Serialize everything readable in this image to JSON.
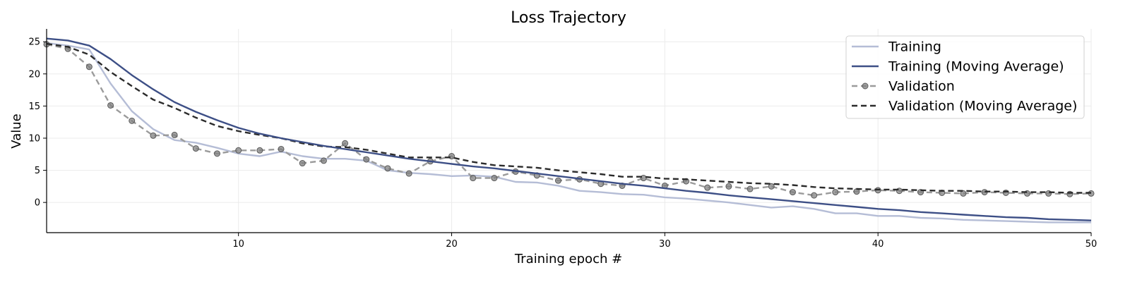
{
  "chart_data": {
    "type": "line",
    "title": "Loss Trajectory",
    "xlabel": "Training epoch #",
    "ylabel": "Value",
    "xlim": [
      1,
      50
    ],
    "ylim": [
      -4.7,
      27
    ],
    "xticks": [
      10,
      20,
      30,
      40,
      50
    ],
    "yticks": [
      0,
      5,
      10,
      15,
      20,
      25
    ],
    "grid": true,
    "legend_position": "top-right",
    "series": [
      {
        "name": "Training",
        "color": "#b5bdd6",
        "style": "solid",
        "x": [
          1,
          2,
          3,
          4,
          5,
          6,
          7,
          8,
          9,
          10,
          11,
          12,
          13,
          14,
          15,
          16,
          17,
          18,
          19,
          20,
          21,
          22,
          23,
          24,
          25,
          26,
          27,
          28,
          29,
          30,
          31,
          32,
          33,
          34,
          35,
          36,
          37,
          38,
          39,
          40,
          41,
          42,
          43,
          44,
          45,
          46,
          47,
          48,
          49,
          50
        ],
        "values": [
          24.8,
          24.4,
          23.8,
          18.5,
          14.2,
          11.4,
          9.7,
          9.3,
          8.5,
          7.6,
          7.2,
          7.9,
          7.2,
          6.8,
          6.8,
          6.5,
          5.0,
          4.6,
          4.4,
          4.1,
          4.2,
          4.0,
          3.2,
          3.1,
          2.6,
          1.8,
          1.6,
          1.3,
          1.2,
          0.8,
          0.6,
          0.3,
          0.0,
          -0.4,
          -0.8,
          -0.6,
          -1.0,
          -1.7,
          -1.7,
          -2.1,
          -2.1,
          -2.4,
          -2.5,
          -2.7,
          -2.8,
          -2.9,
          -3.0,
          -3.1,
          -3.1,
          -3.1
        ]
      },
      {
        "name": "Training (Moving Average)",
        "color": "#3d4f86",
        "style": "solid",
        "x": [
          1,
          2,
          3,
          4,
          5,
          6,
          7,
          8,
          9,
          10,
          11,
          12,
          13,
          14,
          15,
          16,
          17,
          18,
          19,
          20,
          21,
          22,
          23,
          24,
          25,
          26,
          27,
          28,
          29,
          30,
          31,
          32,
          33,
          34,
          35,
          36,
          37,
          38,
          39,
          40,
          41,
          42,
          43,
          44,
          45,
          46,
          47,
          48,
          49,
          50
        ],
        "values": [
          25.5,
          25.2,
          24.4,
          22.3,
          19.8,
          17.6,
          15.6,
          14.1,
          12.8,
          11.6,
          10.7,
          10.0,
          9.4,
          8.8,
          8.3,
          7.8,
          7.3,
          6.8,
          6.4,
          6.0,
          5.6,
          5.3,
          4.9,
          4.5,
          4.1,
          3.7,
          3.3,
          2.9,
          2.6,
          2.2,
          1.8,
          1.5,
          1.1,
          0.8,
          0.5,
          0.2,
          -0.1,
          -0.4,
          -0.7,
          -1.0,
          -1.2,
          -1.5,
          -1.7,
          -1.9,
          -2.1,
          -2.3,
          -2.4,
          -2.6,
          -2.7,
          -2.8
        ]
      },
      {
        "name": "Validation",
        "color": "#9b9b9b",
        "style": "dashed-markers",
        "x": [
          1,
          2,
          3,
          4,
          5,
          6,
          7,
          8,
          9,
          10,
          11,
          12,
          13,
          14,
          15,
          16,
          17,
          18,
          19,
          20,
          21,
          22,
          23,
          24,
          25,
          26,
          27,
          28,
          29,
          30,
          31,
          32,
          33,
          34,
          35,
          36,
          37,
          38,
          39,
          40,
          41,
          42,
          43,
          44,
          45,
          46,
          47,
          48,
          49,
          50
        ],
        "values": [
          24.6,
          23.9,
          21.1,
          15.1,
          12.7,
          10.4,
          10.5,
          8.4,
          7.6,
          8.1,
          8.1,
          8.3,
          6.1,
          6.5,
          9.2,
          6.7,
          5.3,
          4.5,
          6.4,
          7.2,
          3.8,
          3.8,
          4.8,
          4.2,
          3.4,
          3.6,
          2.9,
          2.6,
          3.8,
          2.6,
          3.3,
          2.3,
          2.5,
          2.1,
          2.5,
          1.6,
          1.1,
          1.6,
          1.7,
          1.9,
          1.8,
          1.6,
          1.5,
          1.4,
          1.6,
          1.5,
          1.4,
          1.4,
          1.3,
          1.4
        ]
      },
      {
        "name": "Validation (Moving Average)",
        "color": "#2b2b2b",
        "style": "dashed",
        "x": [
          1,
          2,
          3,
          4,
          5,
          6,
          7,
          8,
          9,
          10,
          11,
          12,
          13,
          14,
          15,
          16,
          17,
          18,
          19,
          20,
          21,
          22,
          23,
          24,
          25,
          26,
          27,
          28,
          29,
          30,
          31,
          32,
          33,
          34,
          35,
          36,
          37,
          38,
          39,
          40,
          41,
          42,
          43,
          44,
          45,
          46,
          47,
          48,
          49,
          50
        ],
        "values": [
          24.7,
          24.2,
          23.0,
          20.3,
          18.1,
          16.0,
          14.7,
          13.2,
          11.9,
          11.1,
          10.5,
          10.0,
          9.2,
          8.7,
          8.6,
          8.2,
          7.6,
          7.0,
          7.0,
          7.0,
          6.3,
          5.8,
          5.6,
          5.4,
          5.0,
          4.7,
          4.4,
          4.0,
          4.0,
          3.7,
          3.6,
          3.4,
          3.2,
          3.0,
          2.9,
          2.7,
          2.4,
          2.2,
          2.1,
          2.0,
          2.0,
          1.9,
          1.8,
          1.8,
          1.7,
          1.7,
          1.6,
          1.6,
          1.5,
          1.5
        ]
      }
    ]
  }
}
